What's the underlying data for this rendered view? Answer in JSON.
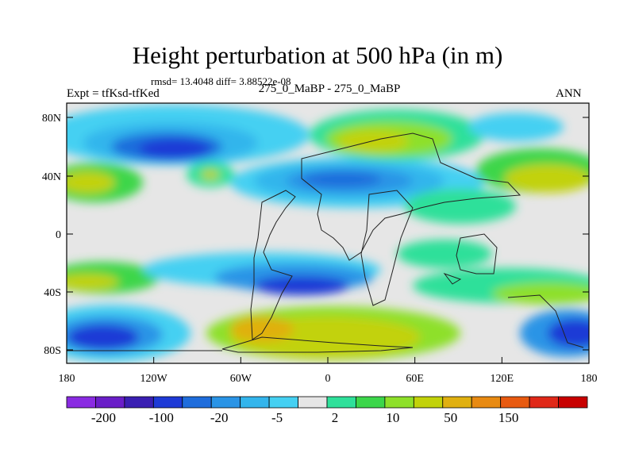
{
  "title": "Height perturbation at 500 hPa (in m)",
  "stats": "rmsd= 13.4048 diff= 3.88522e-08",
  "expt": "Expt = tfKsd-tfKed",
  "case": "275_0_MaBP - 275_0_MaBP",
  "season": "ANN",
  "lat_ticks": [
    "80N",
    "40N",
    "0",
    "40S",
    "80S"
  ],
  "lon_ticks": [
    "180",
    "120W",
    "60W",
    "0",
    "60E",
    "120E",
    "180"
  ],
  "colorbar": {
    "colors": [
      "#8a2be2",
      "#6a1ec8",
      "#3a1fb2",
      "#1e3ad6",
      "#1f6ddc",
      "#2a94e6",
      "#33b5ec",
      "#45d0f2",
      "#e6e6e6",
      "#2fe09a",
      "#3cd64a",
      "#8ee02a",
      "#c2d20a",
      "#e0b010",
      "#e88a12",
      "#e85a10",
      "#e02818",
      "#c80000"
    ],
    "labels": [
      "-200",
      "-100",
      "-20",
      "-5",
      "2",
      "10",
      "50",
      "150"
    ]
  },
  "palette": {
    "ocean_neutral": "#e6e6e6",
    "coast": "#222222"
  }
}
